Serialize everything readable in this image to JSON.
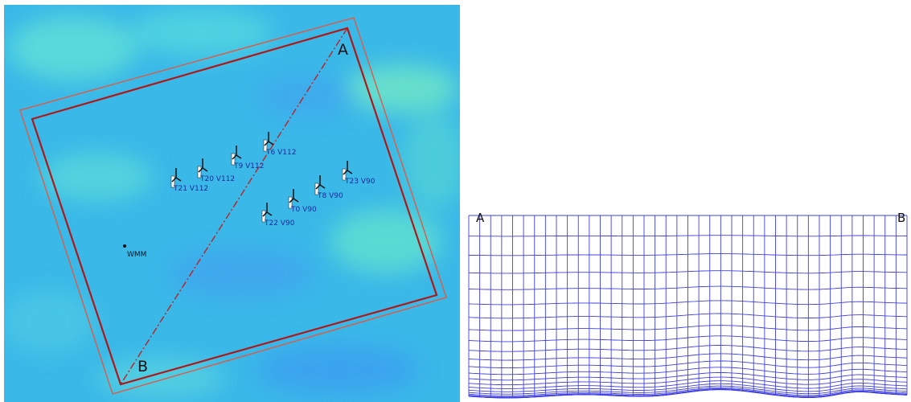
{
  "map": {
    "corner_a": "A",
    "corner_b": "B",
    "turbines": [
      {
        "label": "T21 V112"
      },
      {
        "label": "T20 V112"
      },
      {
        "label": "T9 V112"
      },
      {
        "label": "T6 V112"
      },
      {
        "label": "T23 V90"
      },
      {
        "label": "T8 V90"
      },
      {
        "label": "T0 V90"
      },
      {
        "label": "T22 V90"
      }
    ],
    "met_mast": "WMM"
  },
  "section": {
    "start_label": "A",
    "end_label": "B"
  }
}
